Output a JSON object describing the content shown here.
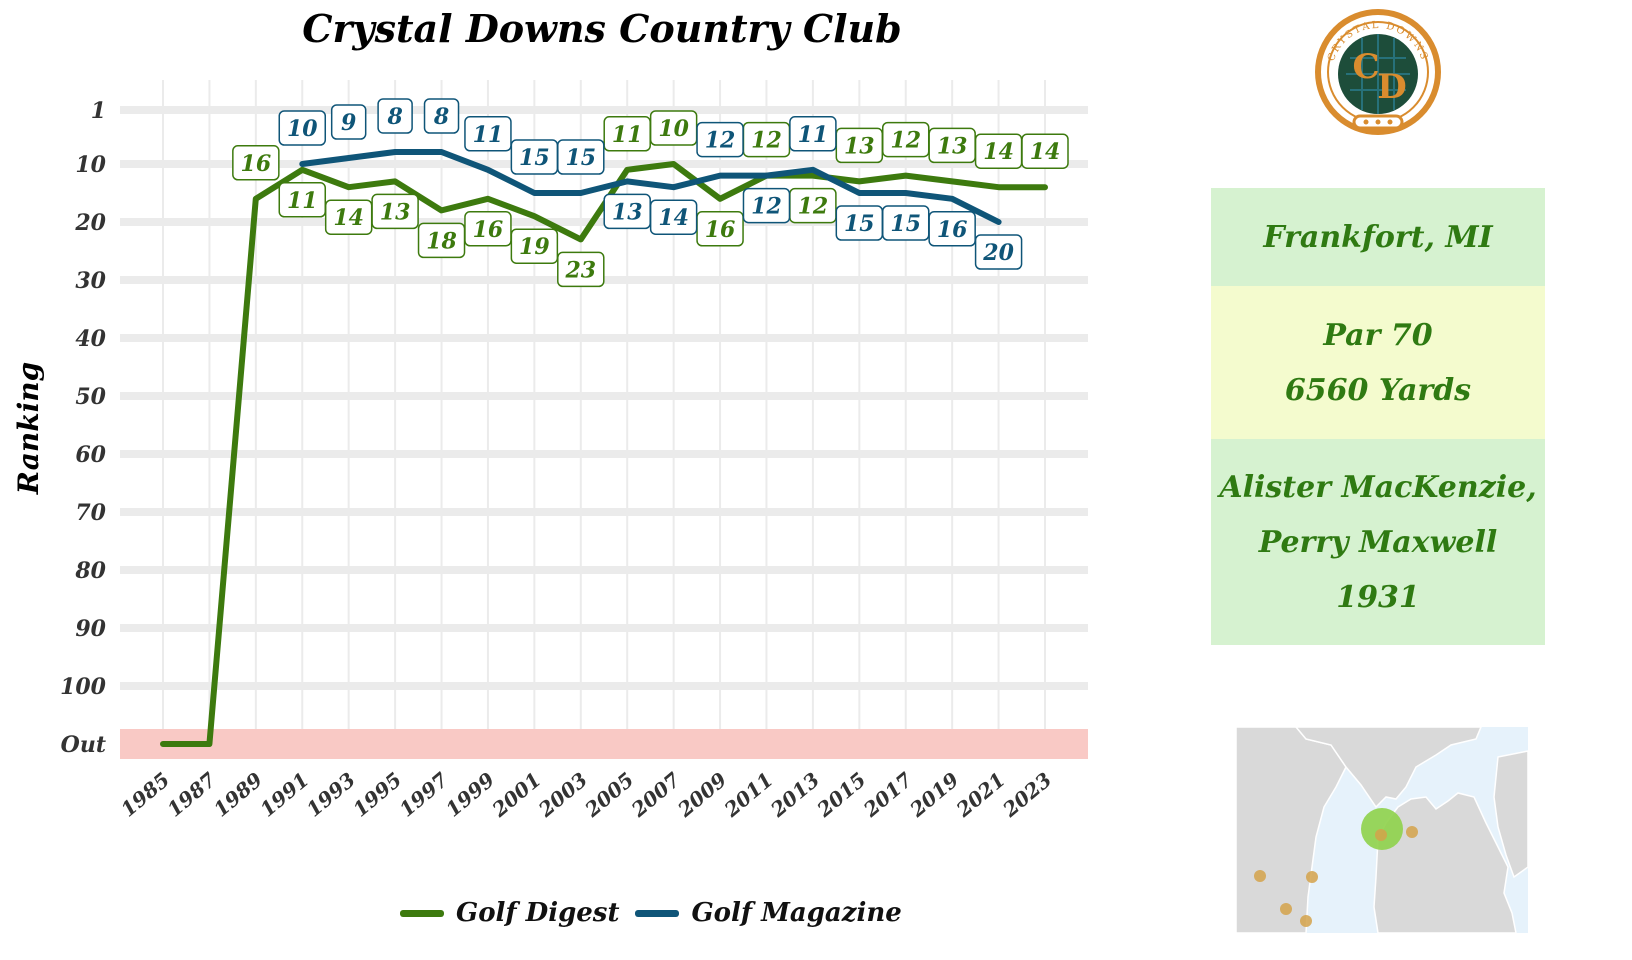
{
  "chart_data": {
    "type": "line",
    "title": "Crystal Downs Country Club",
    "ylabel": "Ranking",
    "xlabel": "",
    "y_tick_labels": [
      "1",
      "10",
      "20",
      "30",
      "40",
      "50",
      "60",
      "70",
      "80",
      "90",
      "100",
      "Out"
    ],
    "x_tick_labels": [
      "1985",
      "1987",
      "1989",
      "1991",
      "1993",
      "1995",
      "1997",
      "1999",
      "2001",
      "2003",
      "2005",
      "2007",
      "2009",
      "2011",
      "2013",
      "2015",
      "2017",
      "2019",
      "2021",
      "2023"
    ],
    "y_reversed": true,
    "ylim": [
      1,
      100
    ],
    "out_band_label": "Out",
    "grid": true,
    "legend_position": "bottom",
    "series": [
      {
        "name": "Golf Digest",
        "color": "#3d7a0e",
        "points": [
          {
            "x": 1985,
            "y": "Out"
          },
          {
            "x": 1987,
            "y": "Out"
          },
          {
            "x": 1989,
            "y": 16
          },
          {
            "x": 1991,
            "y": 11
          },
          {
            "x": 1993,
            "y": 14
          },
          {
            "x": 1995,
            "y": 13
          },
          {
            "x": 1997,
            "y": 18
          },
          {
            "x": 1999,
            "y": 16
          },
          {
            "x": 2001,
            "y": 19
          },
          {
            "x": 2003,
            "y": 23
          },
          {
            "x": 2005,
            "y": 11
          },
          {
            "x": 2007,
            "y": 10
          },
          {
            "x": 2009,
            "y": 16
          },
          {
            "x": 2011,
            "y": 12
          },
          {
            "x": 2013,
            "y": 12
          },
          {
            "x": 2015,
            "y": 13
          },
          {
            "x": 2017,
            "y": 12
          },
          {
            "x": 2019,
            "y": 13
          },
          {
            "x": 2021,
            "y": 14
          },
          {
            "x": 2023,
            "y": 14
          }
        ],
        "labels": [
          {
            "x": 1989,
            "text": "16",
            "pos": "above"
          },
          {
            "x": 1991,
            "text": "11",
            "pos": "below"
          },
          {
            "x": 1993,
            "text": "14",
            "pos": "below"
          },
          {
            "x": 1995,
            "text": "13",
            "pos": "below"
          },
          {
            "x": 1997,
            "text": "18",
            "pos": "below"
          },
          {
            "x": 1999,
            "text": "16",
            "pos": "below"
          },
          {
            "x": 2001,
            "text": "19",
            "pos": "below"
          },
          {
            "x": 2003,
            "text": "23",
            "pos": "below"
          },
          {
            "x": 2005,
            "text": "11",
            "pos": "above"
          },
          {
            "x": 2007,
            "text": "10",
            "pos": "above"
          },
          {
            "x": 2009,
            "text": "16",
            "pos": "below"
          },
          {
            "x": 2011,
            "text": "12",
            "pos": "above"
          },
          {
            "x": 2013,
            "text": "12",
            "pos": "below"
          },
          {
            "x": 2015,
            "text": "13",
            "pos": "above"
          },
          {
            "x": 2017,
            "text": "12",
            "pos": "above"
          },
          {
            "x": 2019,
            "text": "13",
            "pos": "above"
          },
          {
            "x": 2021,
            "text": "14",
            "pos": "above"
          },
          {
            "x": 2023,
            "text": "14",
            "pos": "above"
          }
        ]
      },
      {
        "name": "Golf Magazine",
        "color": "#0f5578",
        "points": [
          {
            "x": 1991,
            "y": 10
          },
          {
            "x": 1993,
            "y": 9
          },
          {
            "x": 1995,
            "y": 8
          },
          {
            "x": 1997,
            "y": 8
          },
          {
            "x": 1999,
            "y": 11
          },
          {
            "x": 2001,
            "y": 15
          },
          {
            "x": 2003,
            "y": 15
          },
          {
            "x": 2005,
            "y": 13
          },
          {
            "x": 2007,
            "y": 14
          },
          {
            "x": 2009,
            "y": 12
          },
          {
            "x": 2011,
            "y": 12
          },
          {
            "x": 2013,
            "y": 11
          },
          {
            "x": 2015,
            "y": 15
          },
          {
            "x": 2017,
            "y": 15
          },
          {
            "x": 2019,
            "y": 16
          },
          {
            "x": 2021,
            "y": 20
          }
        ],
        "labels": [
          {
            "x": 1991,
            "text": "10",
            "pos": "above"
          },
          {
            "x": 1993,
            "text": "9",
            "pos": "above"
          },
          {
            "x": 1995,
            "text": "8",
            "pos": "above"
          },
          {
            "x": 1997,
            "text": "8",
            "pos": "above"
          },
          {
            "x": 1999,
            "text": "11",
            "pos": "above"
          },
          {
            "x": 2001,
            "text": "15",
            "pos": "above"
          },
          {
            "x": 2003,
            "text": "15",
            "pos": "above"
          },
          {
            "x": 2005,
            "text": "13",
            "pos": "below"
          },
          {
            "x": 2007,
            "text": "14",
            "pos": "below"
          },
          {
            "x": 2009,
            "text": "12",
            "pos": "above"
          },
          {
            "x": 2011,
            "text": "12",
            "pos": "below"
          },
          {
            "x": 2013,
            "text": "11",
            "pos": "above"
          },
          {
            "x": 2015,
            "text": "15",
            "pos": "below"
          },
          {
            "x": 2017,
            "text": "15",
            "pos": "below"
          },
          {
            "x": 2019,
            "text": "16",
            "pos": "below"
          },
          {
            "x": 2021,
            "text": "20",
            "pos": "below"
          }
        ]
      }
    ]
  },
  "info_panel": {
    "location": "Frankfort, MI",
    "par": "Par 70",
    "yards": "6560 Yards",
    "architect_line1": "Alister MacKenzie,",
    "architect_line2": "Perry Maxwell",
    "year": "1931"
  },
  "logo": {
    "ring_text": "CRYSTAL DOWNS",
    "letters": [
      "C",
      "D"
    ],
    "colors": {
      "ring": "#d98c2e",
      "inner": "#1d4d3a",
      "letters": "#d98c2e"
    }
  },
  "colors": {
    "out_band": "#f9c9c5",
    "grid": "#ebebeb",
    "info_green": "#d6f2d0",
    "info_yellow": "#f4fbce",
    "info_text": "#2f7a12",
    "map_land": "#d9d9d9",
    "map_water": "#e6f2fb",
    "map_highlight": "#8ed24a",
    "map_dot": "#d4a24a"
  }
}
